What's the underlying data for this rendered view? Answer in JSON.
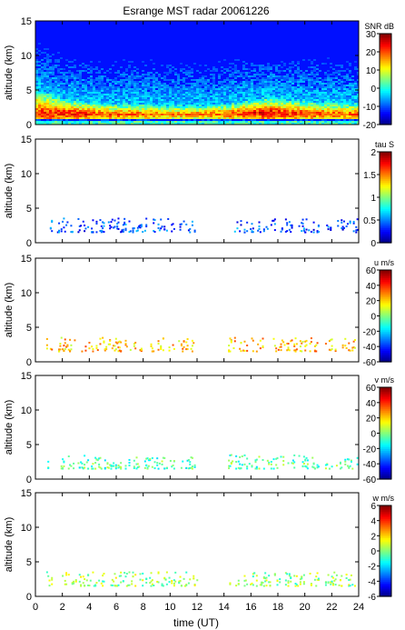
{
  "figure": {
    "title": "Esrange MST radar 20061226",
    "xlabel": "time (UT)"
  },
  "chart_data": [
    {
      "type": "heatmap",
      "id": "snr",
      "ylabel": "altitude (km)",
      "colorbar_label": "SNR dB",
      "x_range": [
        0,
        24
      ],
      "ylim": [
        0,
        15
      ],
      "yticks": [
        0,
        5,
        10,
        15
      ],
      "clim": [
        -20,
        30
      ],
      "cticks": [
        -20,
        -10,
        0,
        10,
        20,
        30
      ],
      "coverage": "full",
      "profile": {
        "hours": [
          0,
          2,
          4,
          6,
          8,
          10,
          12,
          14,
          16,
          17,
          18,
          20,
          22,
          24
        ],
        "boundary_layer_top_km": [
          5.5,
          4.0,
          3.5,
          3.2,
          3.2,
          3.0,
          3.0,
          3.2,
          3.8,
          4.2,
          4.0,
          3.6,
          3.4,
          3.3
        ],
        "peak_snr_db": [
          22,
          24,
          22,
          20,
          20,
          18,
          18,
          20,
          24,
          26,
          24,
          22,
          20,
          20
        ],
        "peak_altitude_km": [
          1.8,
          1.8,
          1.6,
          1.6,
          1.6,
          1.6,
          1.6,
          1.6,
          1.8,
          1.8,
          1.8,
          1.7,
          1.6,
          1.6
        ],
        "background_snr_db": -13
      }
    },
    {
      "type": "heatmap",
      "id": "tau",
      "ylabel": "altitude (km)",
      "colorbar_label": "tau S",
      "x_range": [
        0,
        24
      ],
      "ylim": [
        0,
        15
      ],
      "yticks": [
        0,
        5,
        10,
        15
      ],
      "clim": [
        0,
        2
      ],
      "cticks": [
        0,
        0.5,
        1,
        1.5,
        2
      ],
      "coverage": "sparse",
      "typical_value": 0.4,
      "echo_altitude_km": [
        1.5,
        3.5
      ],
      "echo_time_ranges_h": [
        [
          0.8,
          1.2
        ],
        [
          1.6,
          12.0
        ],
        [
          14.3,
          21.0
        ],
        [
          21.5,
          24.0
        ]
      ]
    },
    {
      "type": "heatmap",
      "id": "u",
      "ylabel": "altitude (km)",
      "colorbar_label": "u m/s",
      "x_range": [
        0,
        24
      ],
      "ylim": [
        0,
        15
      ],
      "yticks": [
        0,
        5,
        10,
        15
      ],
      "clim": [
        -60,
        60
      ],
      "cticks": [
        -60,
        -40,
        -20,
        0,
        20,
        40,
        60
      ],
      "coverage": "sparse",
      "typical_value": 22,
      "echo_altitude_km": [
        1.5,
        3.5
      ],
      "echo_time_ranges_h": [
        [
          0.8,
          1.2
        ],
        [
          1.6,
          12.0
        ],
        [
          14.3,
          21.0
        ],
        [
          21.5,
          24.0
        ]
      ]
    },
    {
      "type": "heatmap",
      "id": "v",
      "ylabel": "altitude (km)",
      "colorbar_label": "v m/s",
      "x_range": [
        0,
        24
      ],
      "ylim": [
        0,
        15
      ],
      "yticks": [
        0,
        5,
        10,
        15
      ],
      "clim": [
        -60,
        60
      ],
      "cticks": [
        -60,
        -40,
        -20,
        0,
        20,
        40,
        60
      ],
      "coverage": "sparse",
      "typical_value": -5,
      "echo_altitude_km": [
        1.5,
        3.5
      ],
      "echo_time_ranges_h": [
        [
          0.8,
          1.2
        ],
        [
          1.6,
          12.0
        ],
        [
          14.3,
          21.0
        ],
        [
          21.5,
          24.0
        ]
      ]
    },
    {
      "type": "heatmap",
      "id": "w",
      "ylabel": "altitude (km)",
      "colorbar_label": "w m/s",
      "x_range": [
        0,
        24
      ],
      "ylim": [
        0,
        15
      ],
      "yticks": [
        0,
        5,
        10,
        15
      ],
      "clim": [
        -6,
        6
      ],
      "cticks": [
        -6,
        -4,
        -2,
        0,
        2,
        4,
        6
      ],
      "coverage": "sparse",
      "typical_value": 0.3,
      "echo_altitude_km": [
        1.5,
        3.5
      ],
      "echo_time_ranges_h": [
        [
          0.8,
          1.2
        ],
        [
          1.6,
          12.0
        ],
        [
          14.3,
          21.0
        ],
        [
          21.5,
          24.0
        ]
      ]
    }
  ],
  "xaxis": {
    "range": [
      0,
      24
    ],
    "ticks": [
      0,
      2,
      4,
      6,
      8,
      10,
      12,
      14,
      16,
      18,
      20,
      22,
      24
    ]
  }
}
